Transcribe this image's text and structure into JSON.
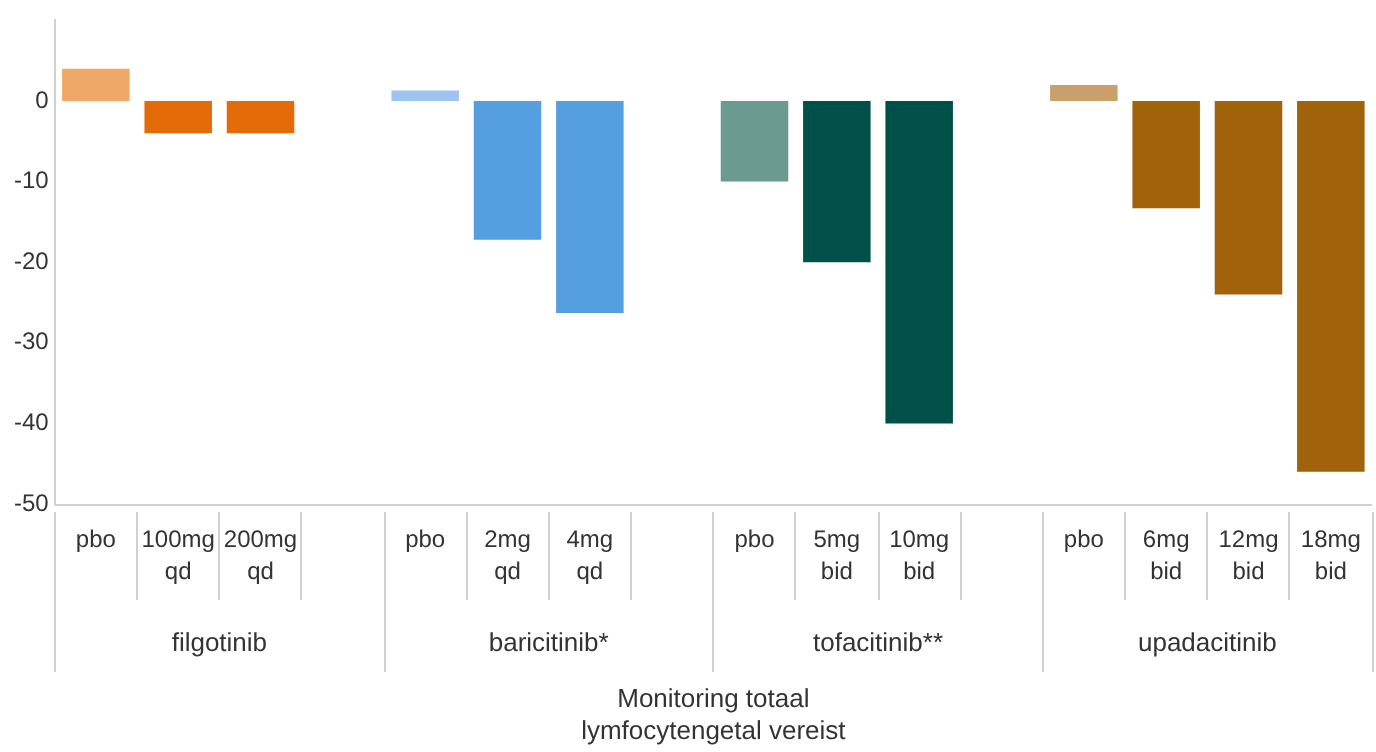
{
  "chart_data": {
    "type": "bar",
    "categories": [
      "pbo",
      "100mg qd",
      "200mg qd",
      null,
      "pbo",
      "2mg qd",
      "4mg qd",
      null,
      "pbo",
      "5mg bid",
      "10mg bid",
      null,
      "pbo",
      "6mg bid",
      "12mg bid",
      "18mg bid"
    ],
    "values": [
      4,
      -4,
      -4,
      null,
      1.3,
      -17.2,
      -26.3,
      null,
      -10,
      -20,
      -40,
      null,
      2,
      -13.3,
      -24,
      -46
    ],
    "colors": [
      "#f0a868",
      "#e36c09",
      "#e36c09",
      "#ffffff",
      "#9dc3f0",
      "#559fe0",
      "#559fe0",
      "#ffffff",
      "#6a9a90",
      "#00504a",
      "#00504a",
      "#ffffff",
      "#c9a06a",
      "#a0620a",
      "#a0620a",
      "#a0620a"
    ],
    "ylim": [
      -50,
      10
    ],
    "yticks": [
      -50,
      -40,
      -30,
      -20,
      -10,
      0
    ],
    "xlabel": "Monitoring totaal lymfocytengetal vereist",
    "annotations": [
      "filgotinib",
      "baricitinib*",
      "tofacitinib**",
      "upadacitinib"
    ],
    "grid": false,
    "legend": false
  }
}
